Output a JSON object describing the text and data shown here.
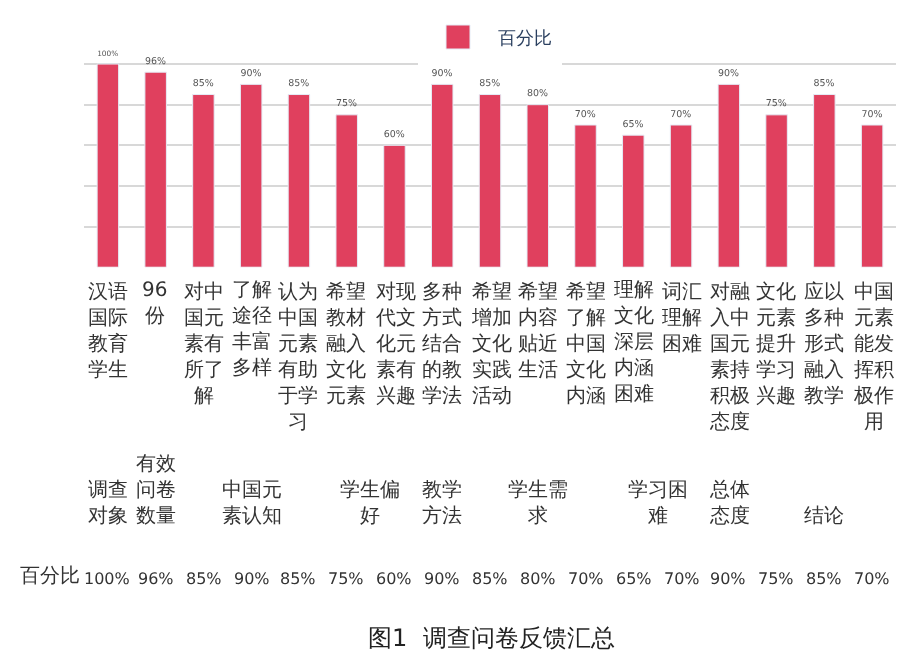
{
  "chart_data": {
    "type": "bar",
    "legend": "top",
    "grid": "y",
    "tick_labels": false,
    "categories": [
      "汉语国际教育学生",
      "96份",
      "对中国元素有所了解",
      "了解途径丰富多样",
      "认为中国元素有助于学习",
      "希望教材融入文化元素",
      "对现代文化元素有兴趣",
      "多种方式结合的教学法",
      "希望增加文化实践活动",
      "希望内容贴近生活",
      "希望了解中国文化内涵",
      "理解文化深层内涵困难",
      "词汇理解困难",
      "对融入中国元素持积极态度",
      "文化元素提升学习兴趣",
      "应以多种形式融入教学",
      "中国元素能发挥积极作用"
    ],
    "series": [
      {
        "name": "百分比",
        "color": "#e0405e",
        "values": [
          100,
          96,
          85,
          90,
          85,
          75,
          60,
          90,
          85,
          80,
          70,
          65,
          70,
          90,
          75,
          85,
          70
        ],
        "value_labels": [
          "100%",
          "96%",
          "85%",
          "90%",
          "85%",
          "75%",
          "60%",
          "90%",
          "85%",
          "80%",
          "70%",
          "65%",
          "70%",
          "90%",
          "75%",
          "85%",
          "70%"
        ]
      }
    ],
    "annotations": [
      "调查对象",
      "有效问卷数量",
      "中国元素认知",
      "学生偏好",
      "教学方法",
      "学生需求",
      "学习困难",
      "总体态度",
      "结论",
      "图1  调查问卷反馈汇总"
    ]
  }
}
